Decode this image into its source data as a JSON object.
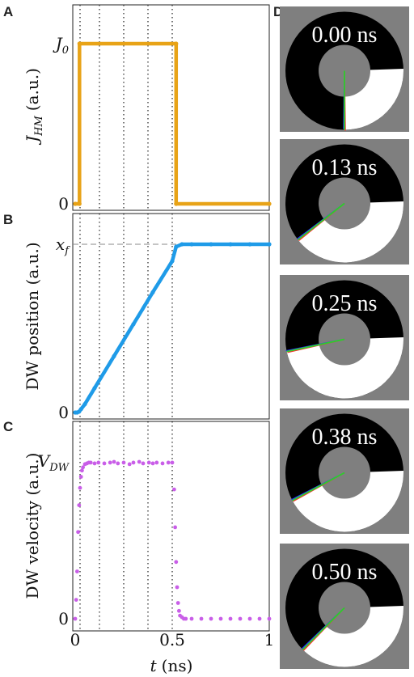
{
  "panels": {
    "A": {
      "letter": "A",
      "ylabel": "J",
      "ylabel_sub": "HM",
      "ylabel_units": "(a.u.)",
      "y_ticks": [
        {
          "value": 1,
          "label": "J",
          "sub": "0"
        },
        {
          "value": 0,
          "label": "0",
          "sub": ""
        }
      ]
    },
    "B": {
      "letter": "B",
      "ylabel": "DW position (a.u.)",
      "y_ticks": [
        {
          "value": 1,
          "label": "x",
          "sub": "f"
        },
        {
          "value": 0,
          "label": "0",
          "sub": ""
        }
      ]
    },
    "C": {
      "letter": "C",
      "ylabel": "DW velocity (a.u.)",
      "y_ticks": [
        {
          "value": 1,
          "label": "V",
          "sub": "DW"
        },
        {
          "value": 0,
          "label": "0",
          "sub": ""
        }
      ],
      "x_ticks": [
        "0",
        "0.5",
        "1"
      ],
      "xlabel_var": "t",
      "xlabel_units": "(ns)"
    },
    "D": {
      "letter": "D",
      "snapshots": [
        {
          "time_label": "0.00 ns",
          "wall_angle_deg": 90
        },
        {
          "time_label": "0.13 ns",
          "wall_angle_deg": 142
        },
        {
          "time_label": "0.25 ns",
          "wall_angle_deg": 168
        },
        {
          "time_label": "0.38 ns",
          "wall_angle_deg": 152
        },
        {
          "time_label": "0.50 ns",
          "wall_angle_deg": 135
        }
      ]
    }
  },
  "chart_data": [
    {
      "type": "line",
      "panel": "A",
      "xlim": [
        0,
        1
      ],
      "ylim": [
        0,
        1
      ],
      "series": [
        {
          "color": "#e8a317",
          "marker": "dot",
          "x": [
            0,
            0.022,
            0.022,
            0.52,
            0.52,
            1.0
          ],
          "y": [
            0,
            0,
            1,
            1,
            0,
            0
          ]
        }
      ],
      "vlines": [
        0.025,
        0.125,
        0.25,
        0.375,
        0.5
      ],
      "grid": false
    },
    {
      "type": "line",
      "panel": "B",
      "xlim": [
        0,
        1
      ],
      "ylim": [
        0,
        1
      ],
      "series": [
        {
          "color": "#1f9be8",
          "marker": "dot",
          "x": [
            0,
            0.01,
            0.02,
            0.03,
            0.05,
            0.1,
            0.2,
            0.3,
            0.4,
            0.5,
            0.52,
            0.55,
            0.6,
            0.7,
            0.8,
            0.9,
            1.0
          ],
          "y": [
            0,
            0,
            0.005,
            0.02,
            0.05,
            0.145,
            0.335,
            0.525,
            0.715,
            0.9,
            0.985,
            1.0,
            1.0,
            1.0,
            1.0,
            1.0,
            1.0
          ]
        }
      ],
      "hlines": [
        {
          "y": 1.0,
          "style": "dashed"
        }
      ],
      "vlines": [
        0.025,
        0.125,
        0.25,
        0.375,
        0.5
      ],
      "grid": false
    },
    {
      "type": "scatter",
      "panel": "C",
      "xlim": [
        0,
        1
      ],
      "ylim": [
        0,
        1
      ],
      "series": [
        {
          "color": "#c95ee8",
          "x": [
            0,
            0.005,
            0.01,
            0.015,
            0.02,
            0.025,
            0.03,
            0.035,
            0.04,
            0.05,
            0.06,
            0.07,
            0.08,
            0.1,
            0.12,
            0.15,
            0.18,
            0.2,
            0.22,
            0.25,
            0.28,
            0.3,
            0.33,
            0.35,
            0.38,
            0.4,
            0.42,
            0.45,
            0.48,
            0.5,
            0.51,
            0.515,
            0.52,
            0.525,
            0.53,
            0.535,
            0.54,
            0.55,
            0.56,
            0.57,
            0.6,
            0.65,
            0.7,
            0.75,
            0.8,
            0.85,
            0.9,
            0.95,
            1.0
          ],
          "y": [
            0,
            0.12,
            0.3,
            0.55,
            0.72,
            0.83,
            0.9,
            0.94,
            0.96,
            0.98,
            0.985,
            0.99,
            0.99,
            0.985,
            0.99,
            0.985,
            0.99,
            0.995,
            0.985,
            0.99,
            0.98,
            0.99,
            0.995,
            0.985,
            0.99,
            0.985,
            0.99,
            0.985,
            0.99,
            0.99,
            0.82,
            0.58,
            0.36,
            0.2,
            0.1,
            0.05,
            0.02,
            0.01,
            0,
            0,
            0,
            0,
            0,
            0,
            0,
            0,
            0,
            0,
            0
          ]
        }
      ],
      "vlines": [
        0.025,
        0.125,
        0.25,
        0.375,
        0.5
      ],
      "grid": false
    }
  ]
}
